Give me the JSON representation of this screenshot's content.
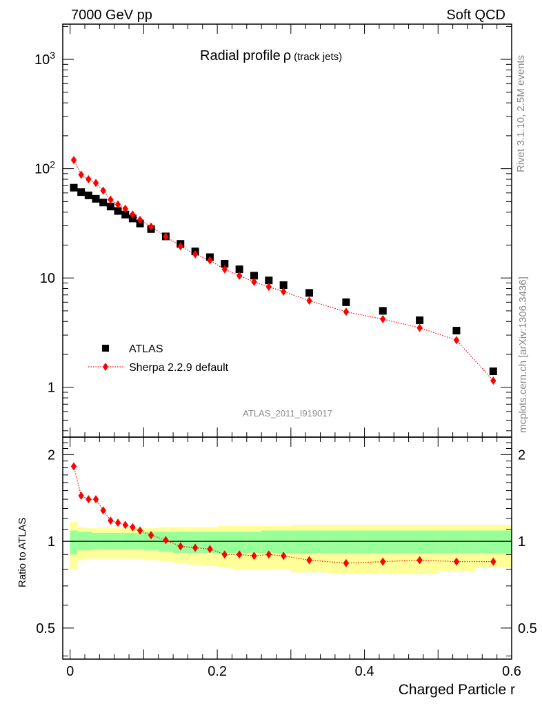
{
  "header": {
    "left": "7000 GeV pp",
    "right": "Soft QCD"
  },
  "side_text": {
    "rivet": "Rivet 3.1.10,  2.5M events",
    "source": "mcplots.cern.ch [arXiv:1306.3436]"
  },
  "colors": {
    "data": "#000000",
    "mc": "#ff0000",
    "band_inner": "#99ff99",
    "band_outer": "#ffff99",
    "label_grey": "#888888"
  },
  "chart_data": [
    {
      "type": "scatter",
      "title": "Radial profile",
      "title_symbol": "ρ",
      "title_suffix": "(track jets)",
      "analysis_id": "ATLAS_2011_I919017",
      "xlabel": "",
      "ylabel": "",
      "xlim": [
        -0.01,
        0.6
      ],
      "ylim": [
        0.35,
        2100
      ],
      "yscale": "log",
      "yticks": [
        {
          "value": 1,
          "label": "1"
        },
        {
          "value": 10,
          "label": "10"
        },
        {
          "value": 100,
          "label": "10",
          "sup": "2"
        },
        {
          "value": 1000,
          "label": "10",
          "sup": "3"
        }
      ],
      "legend": {
        "position": "bottom-left"
      },
      "grid": false,
      "series": [
        {
          "name": "ATLAS",
          "marker": "square",
          "x": [
            0.005,
            0.015,
            0.025,
            0.035,
            0.045,
            0.055,
            0.065,
            0.075,
            0.085,
            0.095,
            0.11,
            0.13,
            0.15,
            0.17,
            0.19,
            0.21,
            0.23,
            0.25,
            0.27,
            0.29,
            0.325,
            0.375,
            0.425,
            0.475,
            0.525,
            0.575
          ],
          "y": [
            67,
            61,
            57,
            53,
            49,
            45,
            41,
            38,
            35,
            31.5,
            28,
            24,
            20.5,
            17.5,
            15.5,
            13.5,
            12,
            10.5,
            9.5,
            8.6,
            7.3,
            6.0,
            5.0,
            4.1,
            3.3,
            1.4
          ]
        },
        {
          "name": "Sherpa 2.2.9 default",
          "marker": "diamond",
          "line": "dotted",
          "x": [
            0.005,
            0.015,
            0.025,
            0.035,
            0.045,
            0.055,
            0.065,
            0.075,
            0.085,
            0.095,
            0.11,
            0.13,
            0.15,
            0.17,
            0.19,
            0.21,
            0.23,
            0.25,
            0.27,
            0.29,
            0.325,
            0.375,
            0.425,
            0.475,
            0.525,
            0.575
          ],
          "y": [
            120,
            88,
            80,
            74,
            63,
            52,
            47,
            43,
            38,
            34,
            29.5,
            24,
            19.5,
            16.5,
            14.5,
            12,
            10.5,
            9.2,
            8.3,
            7.5,
            6.2,
            4.9,
            4.2,
            3.5,
            2.7,
            1.15
          ]
        }
      ]
    },
    {
      "type": "scatter",
      "title": "",
      "xlabel": "Charged Particle r",
      "ylabel": "Ratio to ATLAS",
      "xlim": [
        -0.01,
        0.6
      ],
      "ylim": [
        0.39,
        2.3
      ],
      "yscale": "log",
      "reference_line": 1,
      "yticks": [
        {
          "value": 0.5,
          "label": "0.5"
        },
        {
          "value": 1,
          "label": "1"
        },
        {
          "value": 2,
          "label": "2"
        }
      ],
      "xticks": [
        {
          "value": 0,
          "label": "0"
        },
        {
          "value": 0.2,
          "label": "0.2"
        },
        {
          "value": 0.4,
          "label": "0.4"
        },
        {
          "value": 0.6,
          "label": "0.6"
        }
      ],
      "bands": {
        "edges": [
          0.0,
          0.01,
          0.02,
          0.03,
          0.04,
          0.05,
          0.06,
          0.07,
          0.08,
          0.09,
          0.1,
          0.12,
          0.14,
          0.16,
          0.18,
          0.2,
          0.22,
          0.24,
          0.26,
          0.28,
          0.3,
          0.35,
          0.4,
          0.45,
          0.5,
          0.55,
          0.6
        ],
        "inner_low": [
          0.9,
          0.93,
          0.93,
          0.94,
          0.94,
          0.94,
          0.94,
          0.94,
          0.94,
          0.94,
          0.93,
          0.92,
          0.91,
          0.91,
          0.91,
          0.91,
          0.91,
          0.91,
          0.91,
          0.91,
          0.91,
          0.91,
          0.91,
          0.91,
          0.91,
          0.91
        ],
        "inner_high": [
          1.09,
          1.08,
          1.08,
          1.07,
          1.07,
          1.07,
          1.07,
          1.07,
          1.07,
          1.07,
          1.08,
          1.08,
          1.08,
          1.08,
          1.08,
          1.08,
          1.08,
          1.08,
          1.09,
          1.09,
          1.09,
          1.09,
          1.09,
          1.09,
          1.09,
          1.09
        ],
        "outer_low": [
          0.8,
          0.86,
          0.87,
          0.87,
          0.87,
          0.87,
          0.87,
          0.87,
          0.87,
          0.87,
          0.86,
          0.85,
          0.84,
          0.83,
          0.82,
          0.81,
          0.8,
          0.8,
          0.8,
          0.8,
          0.78,
          0.77,
          0.77,
          0.77,
          0.79,
          0.81
        ],
        "outer_high": [
          1.17,
          1.12,
          1.11,
          1.11,
          1.11,
          1.11,
          1.11,
          1.11,
          1.11,
          1.11,
          1.11,
          1.12,
          1.12,
          1.12,
          1.12,
          1.13,
          1.13,
          1.13,
          1.13,
          1.13,
          1.14,
          1.14,
          1.14,
          1.14,
          1.14,
          1.14
        ]
      },
      "series": [
        {
          "name": "Sherpa 2.2.9 default",
          "marker": "diamond",
          "line": "dotted",
          "x": [
            0.005,
            0.015,
            0.025,
            0.035,
            0.045,
            0.055,
            0.065,
            0.075,
            0.085,
            0.095,
            0.11,
            0.13,
            0.15,
            0.17,
            0.19,
            0.21,
            0.23,
            0.25,
            0.27,
            0.29,
            0.325,
            0.375,
            0.425,
            0.475,
            0.525,
            0.575
          ],
          "y": [
            1.82,
            1.44,
            1.4,
            1.4,
            1.28,
            1.18,
            1.16,
            1.14,
            1.12,
            1.09,
            1.05,
            1.01,
            0.96,
            0.95,
            0.94,
            0.9,
            0.9,
            0.89,
            0.9,
            0.89,
            0.86,
            0.84,
            0.85,
            0.86,
            0.85,
            0.85
          ]
        }
      ]
    }
  ]
}
